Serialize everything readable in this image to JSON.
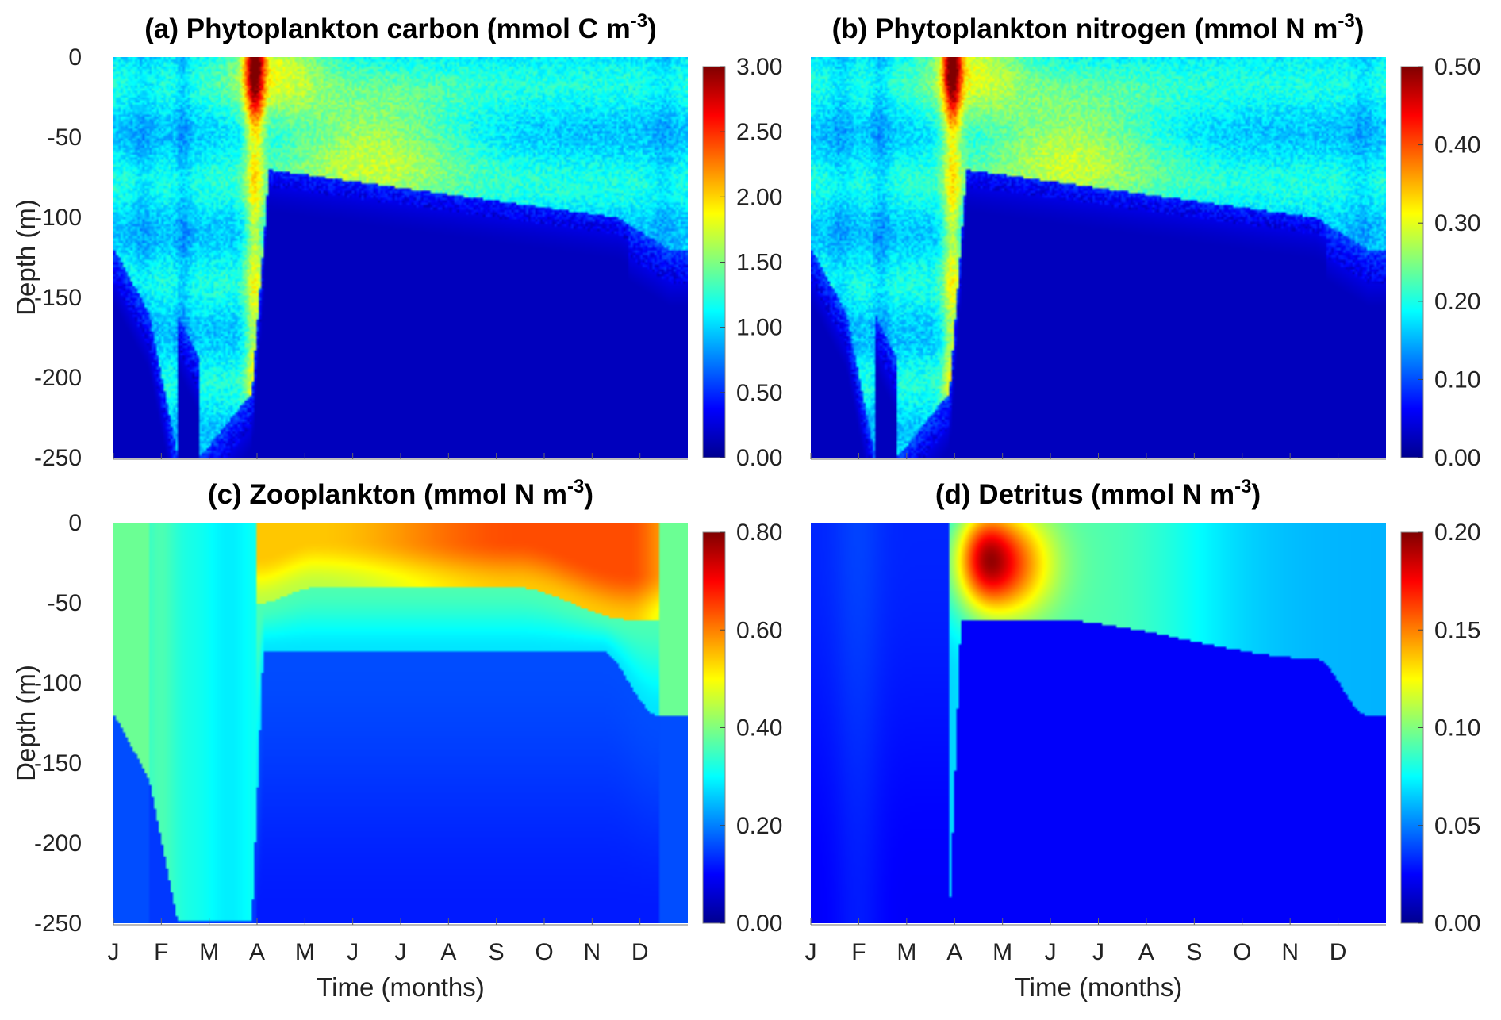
{
  "chart_data": [
    {
      "type": "heatmap",
      "panel": "a",
      "title_main": "(a) Phytoplankton carbon (mmol C m",
      "title_sup": "-3",
      "title_end": ")",
      "xlabel": "",
      "ylabel": "Depth (m)",
      "x_ticks": [
        "J",
        "F",
        "M",
        "A",
        "M",
        "J",
        "J",
        "A",
        "S",
        "O",
        "N",
        "D"
      ],
      "y_ticks": [
        "0",
        "-50",
        "-100",
        "-150",
        "-200",
        "-250"
      ],
      "ylim": [
        -250,
        0
      ],
      "colorbar_ticks": [
        "3.00",
        "2.50",
        "2.00",
        "1.50",
        "1.00",
        "0.50",
        "0.00"
      ],
      "colorbar_range": [
        0,
        3.0
      ],
      "colormap": "jet",
      "noisy": true
    },
    {
      "type": "heatmap",
      "panel": "b",
      "title_main": "(b) Phytoplankton nitrogen (mmol N m",
      "title_sup": "-3",
      "title_end": ")",
      "xlabel": "",
      "ylabel": "",
      "x_ticks": [
        "J",
        "F",
        "M",
        "A",
        "M",
        "J",
        "J",
        "A",
        "S",
        "O",
        "N",
        "D"
      ],
      "y_ticks": [],
      "ylim": [
        -250,
        0
      ],
      "colorbar_ticks": [
        "0.50",
        "0.40",
        "0.30",
        "0.20",
        "0.10",
        "0.00"
      ],
      "colorbar_range": [
        0,
        0.5
      ],
      "colormap": "jet",
      "noisy": true
    },
    {
      "type": "heatmap",
      "panel": "c",
      "title_main": "(c) Zooplankton (mmol N m",
      "title_sup": "-3",
      "title_end": ")",
      "xlabel": "Time (months)",
      "ylabel": "Depth (m)",
      "x_ticks": [
        "J",
        "F",
        "M",
        "A",
        "M",
        "J",
        "J",
        "A",
        "S",
        "O",
        "N",
        "D"
      ],
      "y_ticks": [
        "0",
        "-50",
        "-100",
        "-150",
        "-200",
        "-250"
      ],
      "ylim": [
        -250,
        0
      ],
      "colorbar_ticks": [
        "0.80",
        "0.60",
        "0.40",
        "0.20",
        "0.00"
      ],
      "colorbar_range": [
        0,
        0.8
      ],
      "colormap": "jet",
      "noisy": false
    },
    {
      "type": "heatmap",
      "panel": "d",
      "title_main": "(d) Detritus (mmol N m",
      "title_sup": "-3",
      "title_end": ")",
      "xlabel": "Time (months)",
      "ylabel": "",
      "x_ticks": [
        "J",
        "F",
        "M",
        "A",
        "M",
        "J",
        "J",
        "A",
        "S",
        "O",
        "N",
        "D"
      ],
      "y_ticks": [],
      "ylim": [
        -250,
        0
      ],
      "colorbar_ticks": [
        "0.20",
        "0.15",
        "0.10",
        "0.05",
        "0.00"
      ],
      "colorbar_range": [
        0,
        0.2
      ],
      "colormap": "jet",
      "noisy": false
    }
  ]
}
